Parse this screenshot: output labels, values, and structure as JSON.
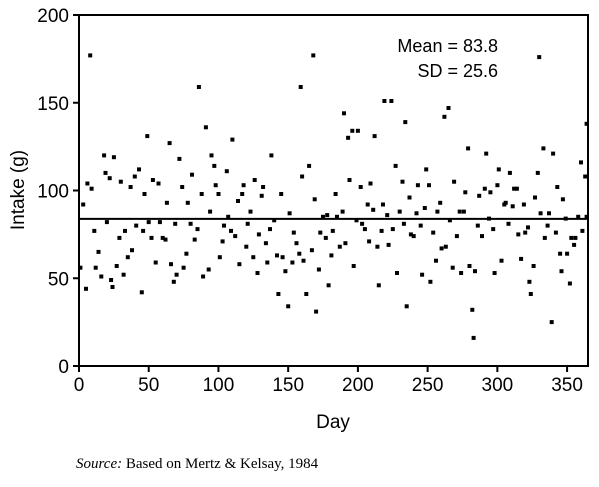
{
  "chart_data": {
    "type": "scatter",
    "title": "",
    "xlabel": "Day",
    "ylabel": "Intake (g)",
    "xlim": [
      0,
      365
    ],
    "ylim": [
      0,
      200
    ],
    "xticks": [
      "0",
      "50",
      "100",
      "150",
      "200",
      "250",
      "300",
      "350"
    ],
    "yticks": [
      "0",
      "50",
      "100",
      "150",
      "200"
    ],
    "grid": false,
    "mean_line": 83.8,
    "annotations": {
      "mean": "Mean = 83.8",
      "sd": "SD = 25.6"
    },
    "points": [
      [
        1,
        56
      ],
      [
        3,
        92
      ],
      [
        5,
        44
      ],
      [
        6,
        104
      ],
      [
        8,
        177
      ],
      [
        9,
        101
      ],
      [
        11,
        77
      ],
      [
        12,
        56
      ],
      [
        14,
        65
      ],
      [
        16,
        51
      ],
      [
        18,
        120
      ],
      [
        19,
        110
      ],
      [
        20,
        82
      ],
      [
        22,
        107
      ],
      [
        23,
        49
      ],
      [
        24,
        45
      ],
      [
        25,
        119
      ],
      [
        27,
        57
      ],
      [
        29,
        73
      ],
      [
        30,
        105
      ],
      [
        32,
        52
      ],
      [
        33,
        77
      ],
      [
        35,
        62
      ],
      [
        37,
        102
      ],
      [
        38,
        66
      ],
      [
        40,
        108
      ],
      [
        41,
        80
      ],
      [
        43,
        112
      ],
      [
        45,
        42
      ],
      [
        46,
        77
      ],
      [
        47,
        98
      ],
      [
        49,
        131
      ],
      [
        50,
        82
      ],
      [
        52,
        73
      ],
      [
        53,
        106
      ],
      [
        55,
        59
      ],
      [
        57,
        104
      ],
      [
        58,
        82
      ],
      [
        60,
        73
      ],
      [
        62,
        72
      ],
      [
        63,
        93
      ],
      [
        65,
        127
      ],
      [
        66,
        58
      ],
      [
        68,
        48
      ],
      [
        69,
        81
      ],
      [
        70,
        52
      ],
      [
        72,
        118
      ],
      [
        74,
        102
      ],
      [
        75,
        56
      ],
      [
        77,
        64
      ],
      [
        78,
        93
      ],
      [
        80,
        81
      ],
      [
        81,
        109
      ],
      [
        83,
        72
      ],
      [
        85,
        78
      ],
      [
        86,
        159
      ],
      [
        88,
        98
      ],
      [
        89,
        51
      ],
      [
        91,
        136
      ],
      [
        93,
        55
      ],
      [
        94,
        88
      ],
      [
        95,
        120
      ],
      [
        97,
        114
      ],
      [
        98,
        103
      ],
      [
        100,
        98
      ],
      [
        101,
        62
      ],
      [
        103,
        71
      ],
      [
        104,
        80
      ],
      [
        106,
        111
      ],
      [
        107,
        85
      ],
      [
        109,
        77
      ],
      [
        110,
        129
      ],
      [
        112,
        74
      ],
      [
        114,
        94
      ],
      [
        115,
        58
      ],
      [
        117,
        98
      ],
      [
        118,
        103
      ],
      [
        120,
        68
      ],
      [
        121,
        81
      ],
      [
        123,
        88
      ],
      [
        125,
        62
      ],
      [
        126,
        106
      ],
      [
        128,
        53
      ],
      [
        129,
        75
      ],
      [
        131,
        97
      ],
      [
        132,
        102
      ],
      [
        134,
        70
      ],
      [
        135,
        59
      ],
      [
        137,
        78
      ],
      [
        138,
        120
      ],
      [
        140,
        83
      ],
      [
        142,
        63
      ],
      [
        143,
        41
      ],
      [
        145,
        98
      ],
      [
        146,
        62
      ],
      [
        148,
        54
      ],
      [
        150,
        34
      ],
      [
        151,
        87
      ],
      [
        153,
        59
      ],
      [
        154,
        76
      ],
      [
        156,
        70
      ],
      [
        158,
        64
      ],
      [
        159,
        159
      ],
      [
        160,
        108
      ],
      [
        161,
        60
      ],
      [
        163,
        41
      ],
      [
        165,
        114
      ],
      [
        167,
        66
      ],
      [
        168,
        177
      ],
      [
        169,
        95
      ],
      [
        170,
        31
      ],
      [
        172,
        55
      ],
      [
        173,
        76
      ],
      [
        175,
        85
      ],
      [
        177,
        73
      ],
      [
        178,
        86
      ],
      [
        179,
        46
      ],
      [
        181,
        63
      ],
      [
        182,
        77
      ],
      [
        184,
        98
      ],
      [
        185,
        85
      ],
      [
        187,
        68
      ],
      [
        189,
        88
      ],
      [
        190,
        144
      ],
      [
        191,
        70
      ],
      [
        193,
        130
      ],
      [
        194,
        106
      ],
      [
        196,
        134
      ],
      [
        197,
        57
      ],
      [
        199,
        83
      ],
      [
        200,
        134
      ],
      [
        202,
        102
      ],
      [
        203,
        81
      ],
      [
        205,
        78
      ],
      [
        207,
        92
      ],
      [
        208,
        71
      ],
      [
        209,
        104
      ],
      [
        211,
        89
      ],
      [
        212,
        131
      ],
      [
        214,
        68
      ],
      [
        215,
        46
      ],
      [
        217,
        77
      ],
      [
        218,
        92
      ],
      [
        219,
        151
      ],
      [
        221,
        86
      ],
      [
        222,
        69
      ],
      [
        224,
        151
      ],
      [
        225,
        78
      ],
      [
        227,
        114
      ],
      [
        228,
        53
      ],
      [
        230,
        88
      ],
      [
        232,
        105
      ],
      [
        233,
        81
      ],
      [
        234,
        139
      ],
      [
        235,
        34
      ],
      [
        237,
        96
      ],
      [
        238,
        75
      ],
      [
        240,
        74
      ],
      [
        242,
        87
      ],
      [
        243,
        103
      ],
      [
        245,
        80
      ],
      [
        246,
        52
      ],
      [
        248,
        90
      ],
      [
        249,
        112
      ],
      [
        251,
        103
      ],
      [
        252,
        48
      ],
      [
        254,
        76
      ],
      [
        256,
        60
      ],
      [
        257,
        88
      ],
      [
        259,
        93
      ],
      [
        260,
        67
      ],
      [
        262,
        142
      ],
      [
        263,
        68
      ],
      [
        265,
        147
      ],
      [
        266,
        83
      ],
      [
        268,
        56
      ],
      [
        269,
        105
      ],
      [
        271,
        74
      ],
      [
        273,
        88
      ],
      [
        274,
        53
      ],
      [
        276,
        88
      ],
      [
        277,
        99
      ],
      [
        279,
        124
      ],
      [
        280,
        57
      ],
      [
        282,
        32
      ],
      [
        283,
        16
      ],
      [
        284,
        54
      ],
      [
        286,
        80
      ],
      [
        287,
        97
      ],
      [
        289,
        74
      ],
      [
        291,
        101
      ],
      [
        292,
        121
      ],
      [
        294,
        84
      ],
      [
        295,
        99
      ],
      [
        297,
        78
      ],
      [
        298,
        53
      ],
      [
        300,
        103
      ],
      [
        301,
        112
      ],
      [
        303,
        60
      ],
      [
        305,
        92
      ],
      [
        306,
        93
      ],
      [
        308,
        81
      ],
      [
        309,
        110
      ],
      [
        311,
        91
      ],
      [
        312,
        101
      ],
      [
        314,
        101
      ],
      [
        315,
        75
      ],
      [
        317,
        61
      ],
      [
        319,
        92
      ],
      [
        320,
        76
      ],
      [
        322,
        79
      ],
      [
        323,
        48
      ],
      [
        324,
        41
      ],
      [
        326,
        57
      ],
      [
        327,
        96
      ],
      [
        329,
        110
      ],
      [
        330,
        176
      ],
      [
        331,
        87
      ],
      [
        333,
        124
      ],
      [
        334,
        73
      ],
      [
        336,
        80
      ],
      [
        337,
        87
      ],
      [
        339,
        25
      ],
      [
        340,
        121
      ],
      [
        342,
        76
      ],
      [
        343,
        102
      ],
      [
        345,
        64
      ],
      [
        346,
        54
      ],
      [
        347,
        95
      ],
      [
        349,
        84
      ],
      [
        350,
        64
      ],
      [
        352,
        47
      ],
      [
        353,
        73
      ],
      [
        355,
        69
      ],
      [
        356,
        73
      ],
      [
        358,
        85
      ],
      [
        360,
        116
      ],
      [
        361,
        77
      ],
      [
        363,
        108
      ],
      [
        364,
        138
      ],
      [
        364,
        85
      ]
    ]
  },
  "source": {
    "label": "Source:",
    "text": " Based on Mertz & Kelsay, 1984"
  }
}
